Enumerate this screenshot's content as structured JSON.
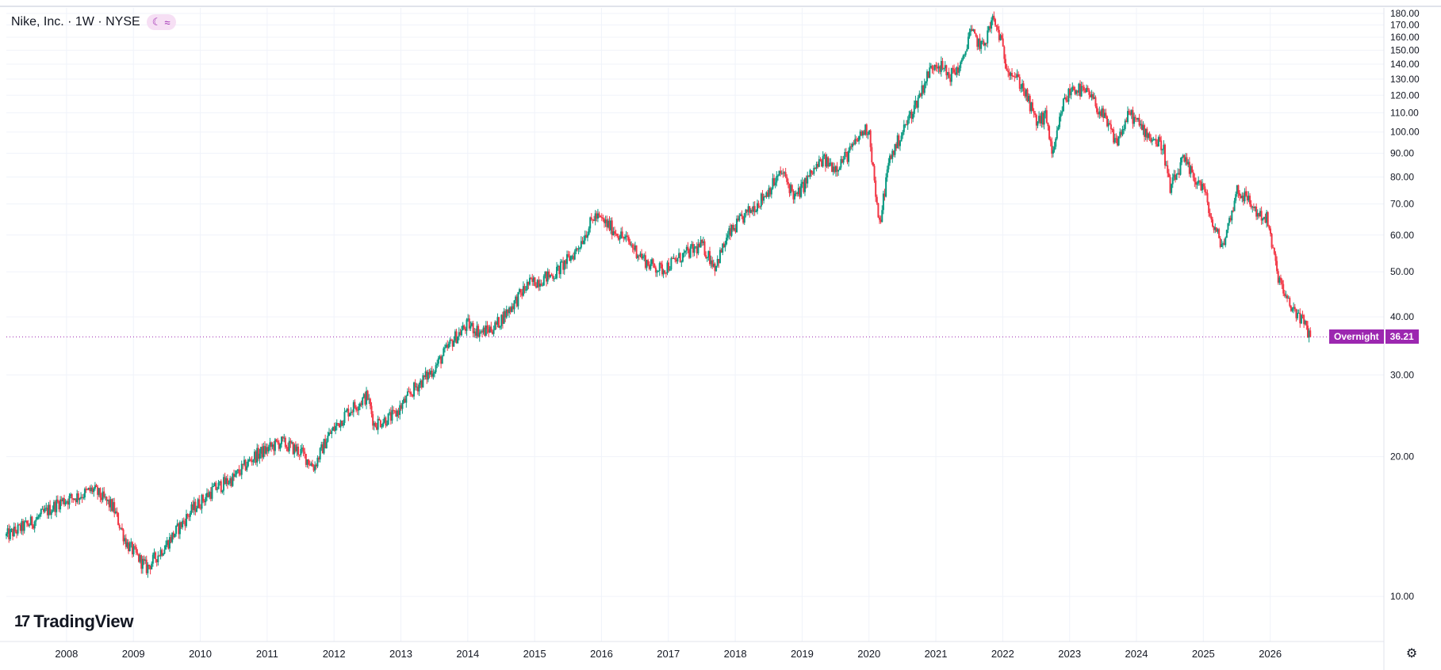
{
  "legend": {
    "symbol": "Nike, Inc. · 1W · NYSE",
    "pill_moon": "☾",
    "pill_wave": "≈"
  },
  "brand": {
    "logo_mark": "17",
    "name": "TradingView"
  },
  "price_label": {
    "session": "Overnight",
    "value": "36.21"
  },
  "colors": {
    "up": "#089981",
    "down": "#f23645",
    "grid": "#f0f3fa",
    "price_line": "#9c27b0",
    "accent": "#9c27b0"
  },
  "icons": {
    "settings": "gear-icon",
    "session": "moon-icon",
    "extended": "wave-icon"
  },
  "chart_data": {
    "type": "candlestick",
    "title": "Nike, Inc. · 1W · NYSE",
    "interval": "1W",
    "exchange": "NYSE",
    "last_price": 36.21,
    "y_scale": "log",
    "ylim": [
      8,
      185
    ],
    "y_ticks": [
      10,
      20,
      30,
      40,
      50,
      60,
      70,
      80,
      90,
      100,
      110,
      120,
      130,
      140,
      150,
      160,
      170,
      180
    ],
    "y_tick_labels": [
      "10.00",
      "20.00",
      "30.00",
      "40.00",
      "50.00",
      "60.00",
      "70.00",
      "80.00",
      "90.00",
      "100.00",
      "110.00",
      "120.00",
      "130.00",
      "140.00",
      "150.00",
      "160.00",
      "170.00",
      "180.00"
    ],
    "x_range": [
      2007.1,
      2027.7
    ],
    "x_ticks": [
      "2008",
      "2009",
      "2010",
      "2011",
      "2012",
      "2013",
      "2014",
      "2015",
      "2016",
      "2017",
      "2018",
      "2019",
      "2020",
      "2021",
      "2022",
      "2023",
      "2024",
      "2025",
      "2026"
    ],
    "grid": true,
    "series": [
      {
        "name": "Nike, Inc.",
        "price_path": [
          [
            2007.1,
            13.5
          ],
          [
            2007.5,
            14.5
          ],
          [
            2007.9,
            16.0
          ],
          [
            2008.2,
            16.5
          ],
          [
            2008.4,
            17.0
          ],
          [
            2008.7,
            15.5
          ],
          [
            2008.9,
            13.0
          ],
          [
            2009.2,
            11.5
          ],
          [
            2009.5,
            13.0
          ],
          [
            2009.9,
            15.5
          ],
          [
            2010.2,
            17.0
          ],
          [
            2010.5,
            18.0
          ],
          [
            2010.8,
            20.0
          ],
          [
            2011.2,
            21.5
          ],
          [
            2011.5,
            20.5
          ],
          [
            2011.7,
            19.0
          ],
          [
            2011.9,
            22.0
          ],
          [
            2012.2,
            25.0
          ],
          [
            2012.5,
            27.0
          ],
          [
            2012.6,
            23.5
          ],
          [
            2012.9,
            24.5
          ],
          [
            2013.2,
            28.0
          ],
          [
            2013.5,
            31.0
          ],
          [
            2013.8,
            36.0
          ],
          [
            2014.0,
            38.5
          ],
          [
            2014.2,
            37.0
          ],
          [
            2014.4,
            38.0
          ],
          [
            2014.7,
            43.0
          ],
          [
            2014.9,
            47.0
          ],
          [
            2015.3,
            49.5
          ],
          [
            2015.6,
            55.0
          ],
          [
            2015.9,
            66.0
          ],
          [
            2016.1,
            63.0
          ],
          [
            2016.4,
            58.0
          ],
          [
            2016.7,
            52.0
          ],
          [
            2016.9,
            50.5
          ],
          [
            2017.2,
            54.0
          ],
          [
            2017.5,
            57.0
          ],
          [
            2017.7,
            51.5
          ],
          [
            2017.9,
            60.0
          ],
          [
            2018.1,
            65.0
          ],
          [
            2018.4,
            72.0
          ],
          [
            2018.7,
            82.0
          ],
          [
            2018.9,
            72.0
          ],
          [
            2019.1,
            80.0
          ],
          [
            2019.3,
            87.0
          ],
          [
            2019.5,
            84.0
          ],
          [
            2019.7,
            90.0
          ],
          [
            2019.9,
            100.0
          ],
          [
            2020.0,
            102.0
          ],
          [
            2020.15,
            62.0
          ],
          [
            2020.3,
            87.0
          ],
          [
            2020.5,
            100.0
          ],
          [
            2020.7,
            115.0
          ],
          [
            2020.9,
            135.0
          ],
          [
            2021.0,
            142.0
          ],
          [
            2021.2,
            132.0
          ],
          [
            2021.4,
            140.0
          ],
          [
            2021.5,
            165.0
          ],
          [
            2021.7,
            152.0
          ],
          [
            2021.85,
            175.0
          ],
          [
            2021.95,
            162.0
          ],
          [
            2022.05,
            140.0
          ],
          [
            2022.3,
            125.0
          ],
          [
            2022.5,
            105.0
          ],
          [
            2022.65,
            108.0
          ],
          [
            2022.75,
            88.0
          ],
          [
            2022.9,
            115.0
          ],
          [
            2023.05,
            125.0
          ],
          [
            2023.3,
            120.0
          ],
          [
            2023.5,
            108.0
          ],
          [
            2023.7,
            95.0
          ],
          [
            2023.9,
            110.0
          ],
          [
            2024.0,
            105.0
          ],
          [
            2024.2,
            98.0
          ],
          [
            2024.4,
            93.0
          ],
          [
            2024.5,
            75.0
          ],
          [
            2024.7,
            87.0
          ],
          [
            2024.85,
            80.0
          ],
          [
            2025.0,
            76.0
          ],
          [
            2025.15,
            62.0
          ],
          [
            2025.3,
            57.0
          ],
          [
            2025.5,
            75.0
          ],
          [
            2025.65,
            72.0
          ],
          [
            2025.8,
            67.0
          ],
          [
            2025.95,
            65.0
          ],
          [
            2026.1,
            50.0
          ],
          [
            2026.25,
            43.0
          ],
          [
            2026.45,
            40.0
          ],
          [
            2026.6,
            36.21
          ]
        ]
      }
    ]
  }
}
